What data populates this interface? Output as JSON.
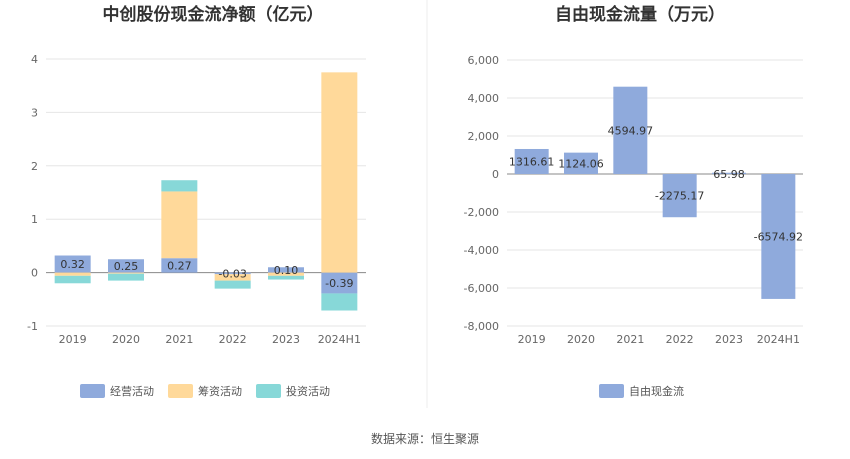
{
  "colors": {
    "operating": "#8faadc",
    "financing": "#ffd99a",
    "investing": "#87d8d8",
    "fcf": "#8faadc"
  },
  "source_note": "数据来源：恒生聚源",
  "chart_data": [
    {
      "type": "bar",
      "stacked": true,
      "title": "中创股份现金流净额（亿元）",
      "categories": [
        "2019",
        "2020",
        "2021",
        "2022",
        "2023",
        "2024H1"
      ],
      "yticks": [
        "-1",
        "0",
        "1",
        "2",
        "3",
        "4"
      ],
      "ylim": [
        -1,
        4
      ],
      "series": [
        {
          "name": "经营活动",
          "values": [
            0.32,
            0.25,
            0.27,
            -0.03,
            0.1,
            -0.39
          ]
        },
        {
          "name": "筹资活动",
          "values": [
            -0.06,
            -0.02,
            1.25,
            -0.12,
            -0.06,
            3.75
          ]
        },
        {
          "name": "投资活动",
          "values": [
            -0.14,
            -0.13,
            0.21,
            -0.15,
            -0.07,
            -0.32
          ]
        }
      ],
      "data_labels": [
        "0.32",
        "0.25",
        "0.27",
        "-0.03",
        "0.10",
        "-0.39"
      ],
      "legend": "bottom"
    },
    {
      "type": "bar",
      "title": "自由现金流量（万元）",
      "categories": [
        "2019",
        "2020",
        "2021",
        "2022",
        "2023",
        "2024H1"
      ],
      "yticks": [
        "-8,000",
        "-6,000",
        "-4,000",
        "-2,000",
        "0",
        "2,000",
        "4,000",
        "6,000"
      ],
      "ylim": [
        -8000,
        6000
      ],
      "series": [
        {
          "name": "自由现金流",
          "values": [
            1316.61,
            1124.06,
            4594.97,
            -2275.17,
            65.98,
            -6574.92
          ]
        }
      ],
      "data_labels": [
        "1316.61",
        "1124.06",
        "4594.97",
        "-2275.17",
        "65.98",
        "-6574.92"
      ],
      "legend": "bottom"
    }
  ]
}
